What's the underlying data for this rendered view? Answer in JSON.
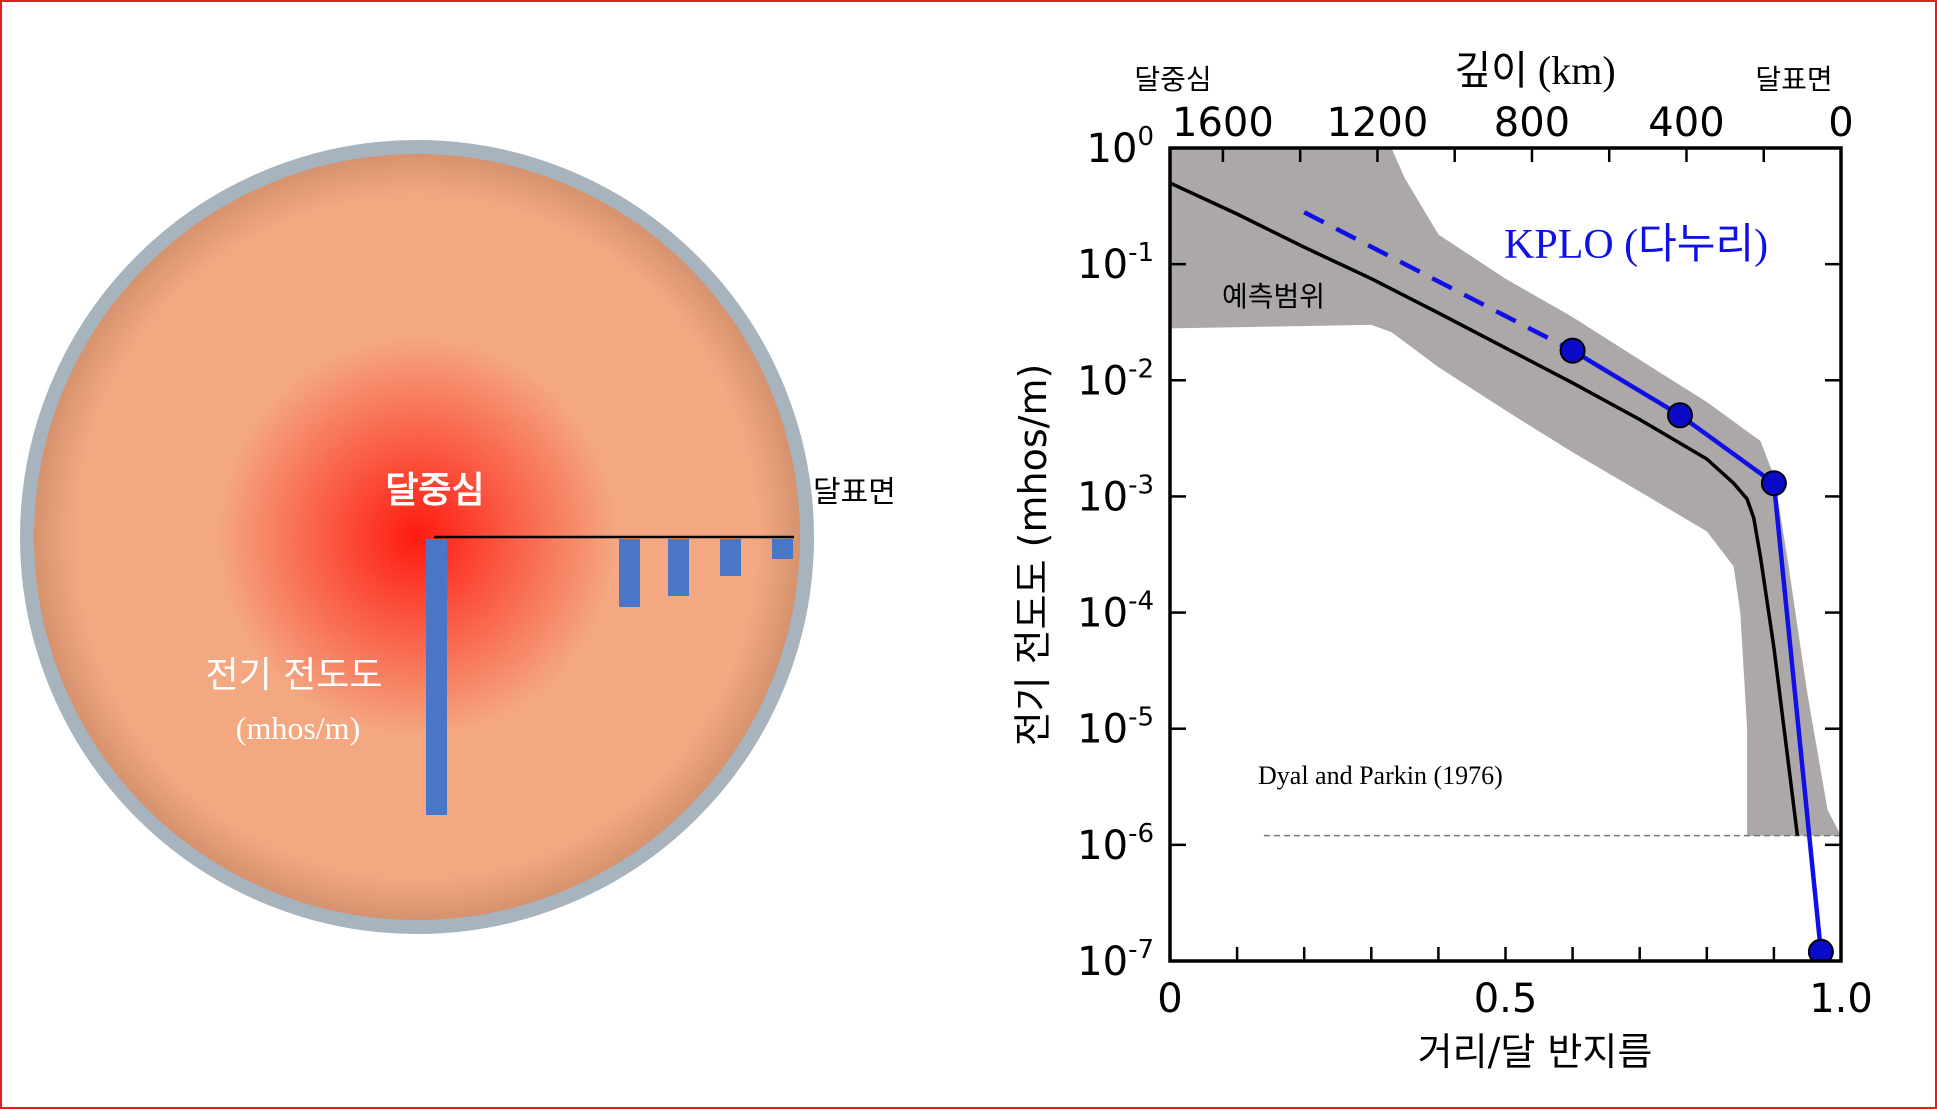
{
  "colors": {
    "frame": "#e02020",
    "moon_shell": "#a7b3bd",
    "moon_center": "#ff1a10",
    "moon_mid": "#f4a882",
    "moon_edge": "#c98a66",
    "bar": "#4a76c8",
    "uncertainty": "#aca8a8",
    "model": "#000000",
    "kplo": "#1010e6",
    "kplo_marker": "#0a0ac8"
  },
  "diagram": {
    "center_label": "달중심",
    "surface_label": "달표면",
    "conductivity_label": "전기 전도도",
    "unit_label": "(mhos/m)"
  },
  "chart_data": {
    "type": "line",
    "ylabel": "전기 전도도 (mhos/m)",
    "xlabel": "거리/달 반지름",
    "xlim": [
      0,
      1.0
    ],
    "x_ticks": [
      "0",
      "0.5",
      "1.0"
    ],
    "y_scale": "log",
    "ylim": [
      1e-07,
      1
    ],
    "y_ticks": [
      {
        "base": "10",
        "exp": "0"
      },
      {
        "base": "10",
        "exp": "-1"
      },
      {
        "base": "10",
        "exp": "-2"
      },
      {
        "base": "10",
        "exp": "-3"
      },
      {
        "base": "10",
        "exp": "-4"
      },
      {
        "base": "10",
        "exp": "-5"
      },
      {
        "base": "10",
        "exp": "-6"
      },
      {
        "base": "10",
        "exp": "-7"
      }
    ],
    "top_axis": {
      "label": "깊이 (km)",
      "ticks": [
        "1600",
        "1200",
        "800",
        "400",
        "0"
      ],
      "left_label": "달중심",
      "right_label": "달표면"
    },
    "series": [
      {
        "name": "KPLO (다누리)",
        "dashed_x": [
          0.2,
          0.6
        ],
        "dashed_y": [
          0.28,
          0.018
        ],
        "x": [
          0.6,
          0.76,
          0.9,
          0.97
        ],
        "y": [
          0.018,
          0.005,
          0.0013,
          1.2e-07
        ]
      }
    ],
    "model_curve": {
      "x": [
        0,
        0.1,
        0.2,
        0.3,
        0.4,
        0.5,
        0.6,
        0.7,
        0.8,
        0.84,
        0.86,
        0.87,
        0.88,
        0.9,
        0.92,
        0.935
      ],
      "y": [
        0.5,
        0.27,
        0.14,
        0.075,
        0.038,
        0.019,
        0.0095,
        0.0046,
        0.0021,
        0.0013,
        0.00095,
        0.00065,
        0.0003,
        5e-05,
        6e-06,
        1.2e-06
      ]
    },
    "band": {
      "label": "예측범위",
      "upper_x": [
        0,
        0.33,
        0.35,
        0.4,
        0.5,
        0.6,
        0.7,
        0.8,
        0.88,
        0.9,
        0.92,
        0.95,
        0.98,
        1.0
      ],
      "upper_y": [
        1,
        1,
        0.55,
        0.18,
        0.075,
        0.035,
        0.015,
        0.0065,
        0.003,
        0.0015,
        0.0003,
        2e-05,
        2e-06,
        1.2e-06
      ],
      "lower_x": [
        1.0,
        0.86,
        0.86,
        0.85,
        0.84,
        0.8,
        0.7,
        0.6,
        0.5,
        0.4,
        0.33,
        0.3,
        0
      ],
      "lower_y": [
        1.2e-06,
        1.2e-06,
        1e-05,
        0.0001,
        0.00025,
        0.0005,
        0.0011,
        0.0024,
        0.0055,
        0.013,
        0.026,
        0.03,
        0.028
      ]
    },
    "reference": {
      "label": "Dyal and Parkin (1976)",
      "y": 1.2e-06,
      "x_range": [
        0.14,
        1.0
      ]
    }
  }
}
